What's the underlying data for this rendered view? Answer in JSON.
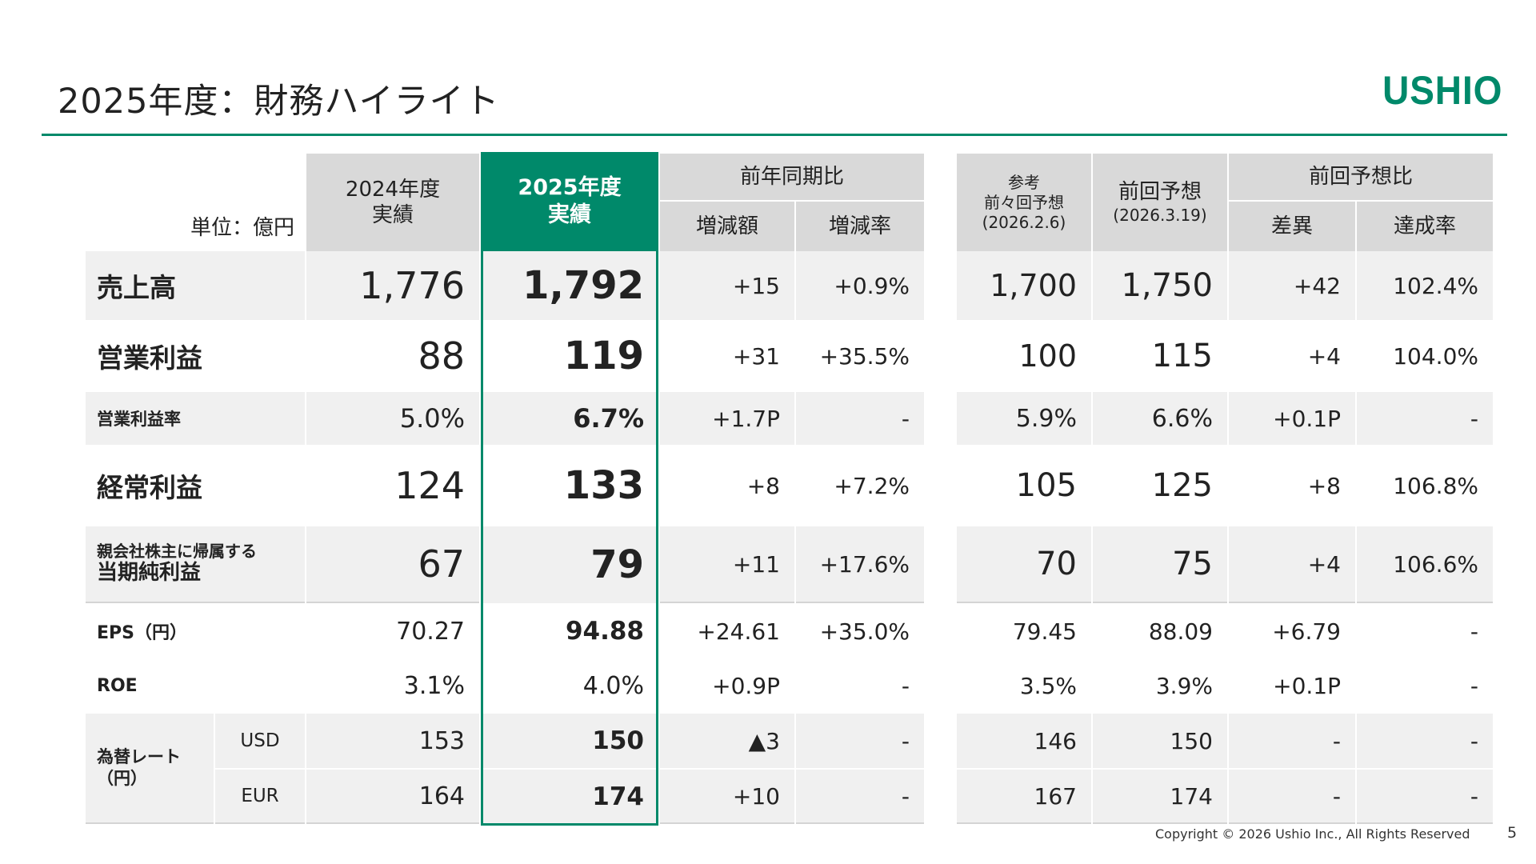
{
  "title": "2025年度：財務ハイライト",
  "logo": "USHIO",
  "unit": "単位：億円",
  "headers": {
    "fy2024": "2024年度",
    "fy2024_sub": "実績",
    "fy2025": "2025年度",
    "fy2025_sub": "実績",
    "yoy": "前年同期比",
    "yoy_diff": "増減額",
    "yoy_rate": "増減率",
    "ref_label": "参考",
    "ref_prev2": "前々回予想",
    "ref_prev2_date": "(2026.2.6)",
    "prev_forecast": "前回予想",
    "prev_forecast_date": "(2026.3.19)",
    "vs_prev": "前回予想比",
    "vs_diff": "差異",
    "vs_rate": "達成率"
  },
  "rows": [
    {
      "label": "売上高",
      "fy2024": "1,776",
      "fy2025": "1,792",
      "yoy_diff": "+15",
      "yoy_rate": "+0.9%",
      "prev2": "1,700",
      "prev": "1,750",
      "vs_diff": "+42",
      "vs_rate": "102.4%"
    },
    {
      "label": "営業利益",
      "fy2024": "88",
      "fy2025": "119",
      "yoy_diff": "+31",
      "yoy_rate": "+35.5%",
      "prev2": "100",
      "prev": "115",
      "vs_diff": "+4",
      "vs_rate": "104.0%"
    },
    {
      "label": "営業利益率",
      "fy2024": "5.0%",
      "fy2025": "6.7%",
      "yoy_diff": "+1.7P",
      "yoy_rate": "-",
      "prev2": "5.9%",
      "prev": "6.6%",
      "vs_diff": "+0.1P",
      "vs_rate": "-"
    },
    {
      "label": "経常利益",
      "fy2024": "124",
      "fy2025": "133",
      "yoy_diff": "+8",
      "yoy_rate": "+7.2%",
      "prev2": "105",
      "prev": "125",
      "vs_diff": "+8",
      "vs_rate": "106.8%"
    },
    {
      "label_top": "親会社株主に帰属する",
      "label": "当期純利益",
      "fy2024": "67",
      "fy2025": "79",
      "yoy_diff": "+11",
      "yoy_rate": "+17.6%",
      "prev2": "70",
      "prev": "75",
      "vs_diff": "+4",
      "vs_rate": "106.6%"
    },
    {
      "label": "EPS（円）",
      "fy2024": "70.27",
      "fy2025": "94.88",
      "yoy_diff": "+24.61",
      "yoy_rate": "+35.0%",
      "prev2": "79.45",
      "prev": "88.09",
      "vs_diff": "+6.79",
      "vs_rate": "-"
    },
    {
      "label": "ROE",
      "fy2024": "3.1%",
      "fy2025": "4.0%",
      "yoy_diff": "+0.9P",
      "yoy_rate": "-",
      "prev2": "3.5%",
      "prev": "3.9%",
      "vs_diff": "+0.1P",
      "vs_rate": "-"
    },
    {
      "label": "為替レート",
      "label2": "（円）",
      "sub": "USD",
      "fy2024": "153",
      "fy2025": "150",
      "yoy_diff": "▲3",
      "yoy_rate": "-",
      "prev2": "146",
      "prev": "150",
      "vs_diff": "-",
      "vs_rate": "-"
    },
    {
      "sub": "EUR",
      "fy2024": "164",
      "fy2025": "174",
      "yoy_diff": "+10",
      "yoy_rate": "-",
      "prev2": "167",
      "prev": "174",
      "vs_diff": "-",
      "vs_rate": "-"
    }
  ],
  "footer": "Copyright © 2026 Ushio Inc., All Rights Reserved",
  "page_number": "5",
  "colors": {
    "accent": "#00896a",
    "header_gray": "#d9d9d9",
    "row_gray": "#f0f0f0"
  }
}
